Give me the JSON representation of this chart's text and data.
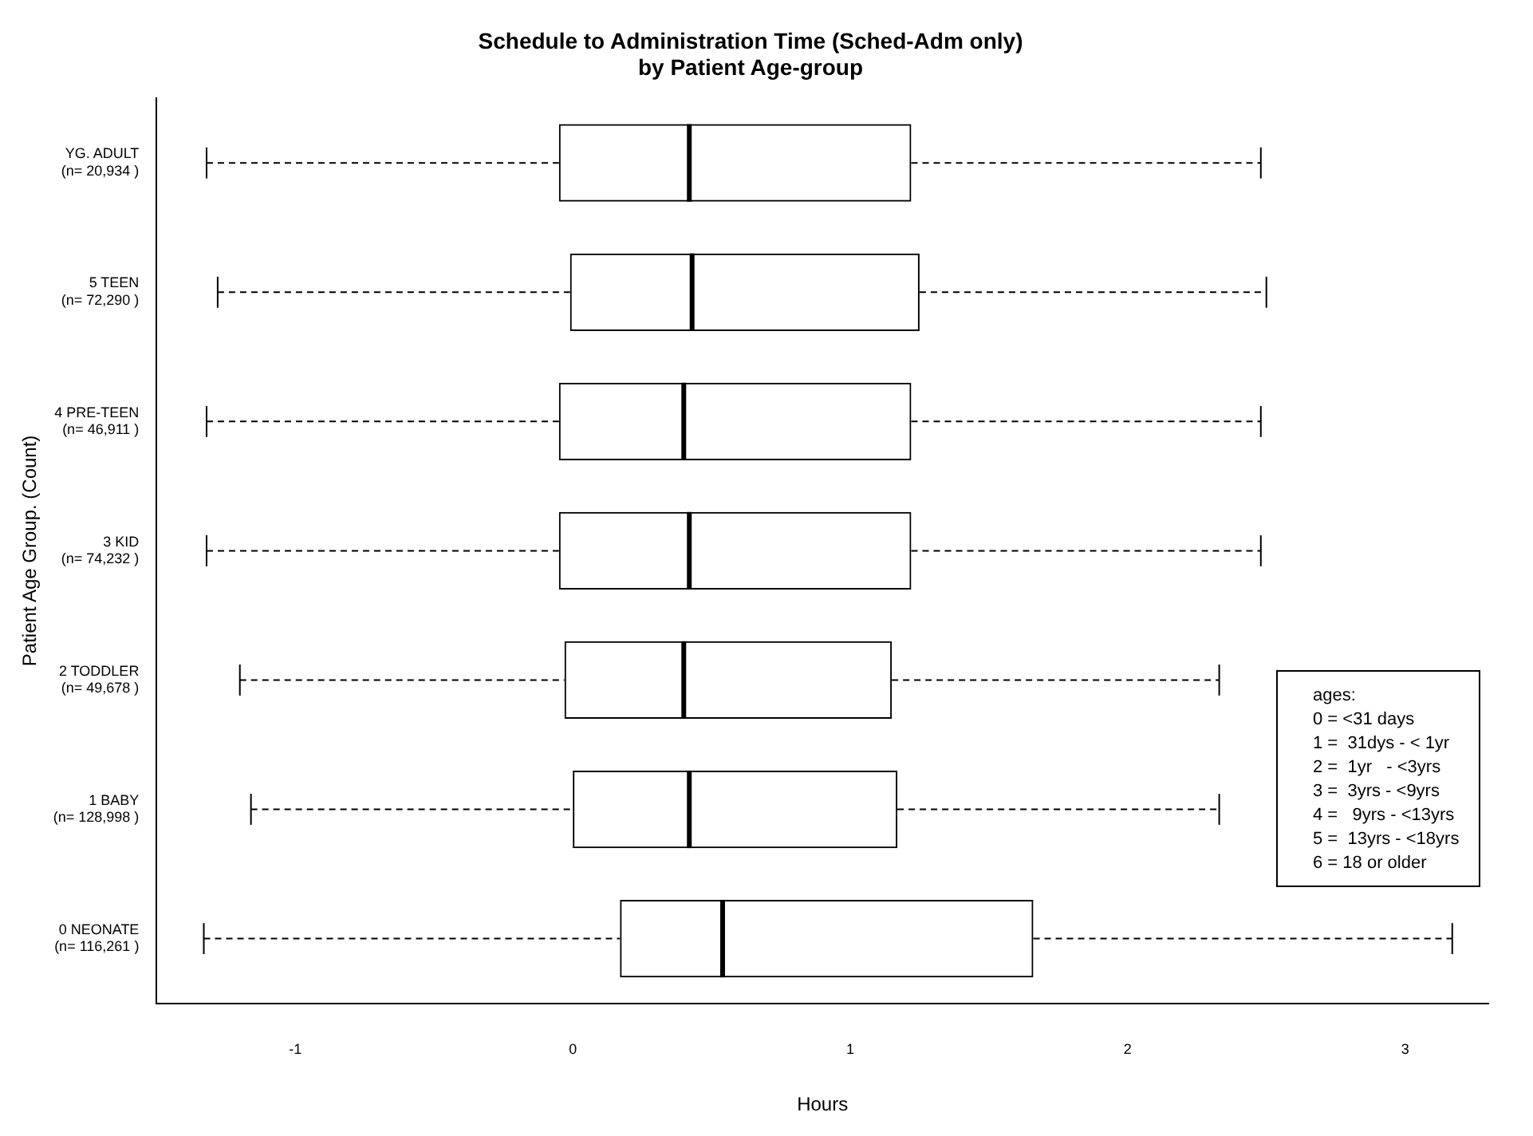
{
  "chart_data": {
    "type": "box",
    "orientation": "horizontal",
    "title": "Schedule to Administration Time (Sched-Adm only)\nby Patient Age-group",
    "xlabel": "Hours",
    "ylabel": "Patient Age Group. (Count)",
    "categories": [
      "YG. ADULT\n(n= 20,934 )",
      "5 TEEN\n(n= 72,290 )",
      "4 PRE-TEEN\n(n= 46,911 )",
      "3 KID\n(n= 74,232 )",
      "2 TODDLER\n(n= 49,678 )",
      "1 BABY\n(n= 128,998 )",
      "0 NEONATE\n(n= 116,261 )"
    ],
    "boxes": [
      {
        "low": -1.32,
        "q1": -0.05,
        "median": 0.42,
        "q3": 1.22,
        "high": 2.48
      },
      {
        "low": -1.28,
        "q1": -0.01,
        "median": 0.43,
        "q3": 1.25,
        "high": 2.5
      },
      {
        "low": -1.32,
        "q1": -0.05,
        "median": 0.4,
        "q3": 1.22,
        "high": 2.48
      },
      {
        "low": -1.32,
        "q1": -0.05,
        "median": 0.42,
        "q3": 1.22,
        "high": 2.48
      },
      {
        "low": -1.2,
        "q1": -0.03,
        "median": 0.4,
        "q3": 1.15,
        "high": 2.33
      },
      {
        "low": -1.16,
        "q1": 0,
        "median": 0.42,
        "q3": 1.17,
        "high": 2.33
      },
      {
        "low": -1.33,
        "q1": 0.17,
        "median": 0.54,
        "q3": 1.66,
        "high": 3.17
      }
    ],
    "color": "#000000",
    "xlim": [
      -1.5,
      3.3
    ],
    "xticks": [
      -1,
      0,
      1,
      2,
      3
    ],
    "grid": false,
    "legend": false,
    "annotations": [
      "ages:",
      "0 = <31 days",
      "1 =  31dys - < 1yr",
      "2 =  1yr   - <3yrs",
      "3 =  3yrs - <9yrs",
      "4 =   9yrs - <13yrs",
      "5 =  13yrs - <18yrs",
      "6 = 18 or older"
    ]
  }
}
